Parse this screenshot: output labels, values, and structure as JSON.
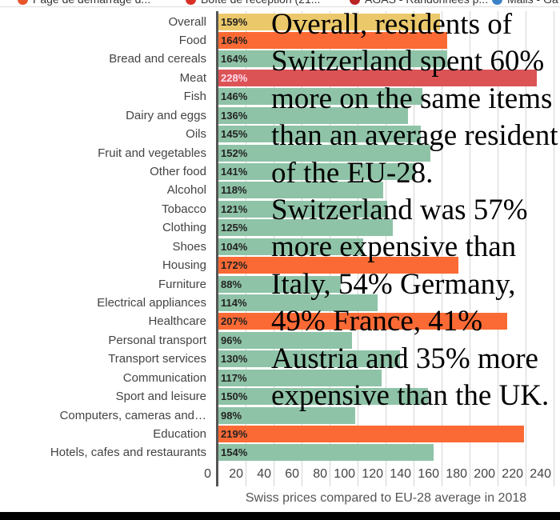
{
  "bookmarks": [
    {
      "label": "Page de démarrage d...",
      "icon": "firefox-icon",
      "color": "#e8542b"
    },
    {
      "label": "Boîte de réception (21...",
      "icon": "gmail-icon",
      "color": "#d93025"
    },
    {
      "label": "AGAS - Randonnées p...",
      "icon": "hiker-icon",
      "color": "#b22"
    },
    {
      "label": "Mails - Ga",
      "icon": "mail-icon",
      "color": "#3b82c4"
    }
  ],
  "overlay_text": "Overall, residents of Switzerland spent 60% more on the same items than an average resident of the EU-28. Switzerland was 57% more expensive than Italy, 54% Germany, 49% France, 41% Austria and 35% more expensive than the UK.",
  "colors": {
    "overall": "#ebc86a",
    "high": "#fb6a35",
    "highest": "#dc5356",
    "normal": "#8fc3a7"
  },
  "chart_data": {
    "type": "bar",
    "orientation": "horizontal",
    "title": "",
    "xlabel": "Swiss prices compared to EU-28 average in 2018",
    "ylabel": "",
    "xlim": [
      0,
      240
    ],
    "xticks": [
      0,
      20,
      40,
      60,
      80,
      100,
      120,
      140,
      160,
      180,
      200,
      220,
      240
    ],
    "grid": true,
    "categories": [
      "Overall",
      "Food",
      "Bread and cereals",
      "Meat",
      "Fish",
      "Dairy and eggs",
      "Oils",
      "Fruit and vegetables",
      "Other food",
      "Alcohol",
      "Tobacco",
      "Clothing",
      "Shoes",
      "Housing",
      "Furniture",
      "Electrical appliances",
      "Healthcare",
      "Personal transport",
      "Transport services",
      "Communication",
      "Sport and leisure",
      "Computers, cameras and…",
      "Education",
      "Hotels, cafes and restaurants"
    ],
    "values": [
      159,
      164,
      164,
      228,
      146,
      136,
      145,
      152,
      141,
      118,
      121,
      125,
      104,
      172,
      88,
      114,
      207,
      96,
      130,
      117,
      150,
      98,
      219,
      154
    ],
    "labels": [
      "159%",
      "164%",
      "164%",
      "228%",
      "146%",
      "136%",
      "145%",
      "152%",
      "141%",
      "118%",
      "121%",
      "125%",
      "104%",
      "172%",
      "88%",
      "114%",
      "207%",
      "96%",
      "130%",
      "117%",
      "150%",
      "98%",
      "219%",
      "154%"
    ],
    "color_groups": [
      "overall",
      "high",
      "normal",
      "highest",
      "normal",
      "normal",
      "normal",
      "normal",
      "normal",
      "normal",
      "normal",
      "normal",
      "normal",
      "high",
      "normal",
      "normal",
      "high",
      "normal",
      "normal",
      "normal",
      "normal",
      "normal",
      "high",
      "normal"
    ]
  }
}
